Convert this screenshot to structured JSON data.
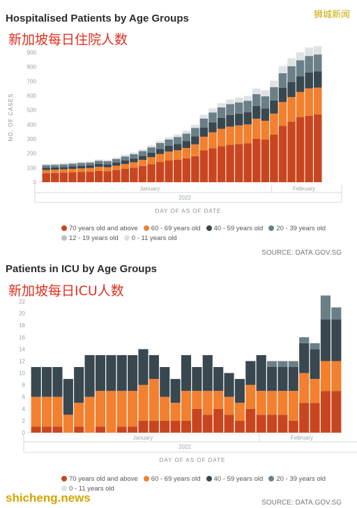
{
  "watermark": "狮城新闻",
  "site": "shicheng.news",
  "chart_data": [
    {
      "type": "bar",
      "stacked": true,
      "title": "Hospitalised Patients by Age Groups",
      "subtitle_cn": "新加坡每日住院人数",
      "ylabel": "NO. OF CASES",
      "xlabel": "DAY OF AS OF DATE",
      "month_labels": [
        "January",
        "February"
      ],
      "year_label": "2022",
      "ylim": [
        0,
        900
      ],
      "yticks": [
        0,
        100,
        200,
        300,
        400,
        500,
        600,
        700,
        800,
        900
      ],
      "source": "SOURCE: DATA.GOV.SG",
      "series": [
        {
          "name": "70 years old and above",
          "color": "#c8461f",
          "values": [
            62,
            64,
            66,
            68,
            70,
            72,
            78,
            76,
            84,
            92,
            100,
            112,
            125,
            140,
            150,
            155,
            165,
            180,
            220,
            235,
            250,
            260,
            265,
            270,
            300,
            295,
            330,
            390,
            420,
            450,
            460,
            470
          ]
        },
        {
          "name": "60 - 69 years old",
          "color": "#f2802f",
          "values": [
            22,
            22,
            23,
            24,
            25,
            26,
            28,
            27,
            30,
            34,
            38,
            42,
            48,
            55,
            62,
            66,
            72,
            82,
            95,
            110,
            120,
            125,
            128,
            130,
            140,
            130,
            145,
            165,
            170,
            175,
            190,
            185
          ]
        },
        {
          "name": "40 - 59 years old",
          "color": "#39474f",
          "values": [
            16,
            16,
            16,
            17,
            18,
            18,
            20,
            20,
            22,
            24,
            26,
            28,
            32,
            36,
            40,
            44,
            48,
            56,
            64,
            70,
            76,
            80,
            82,
            84,
            88,
            86,
            92,
            100,
            104,
            108,
            110,
            112
          ]
        },
        {
          "name": "20 - 39 years old",
          "color": "#6b7f87",
          "values": [
            18,
            18,
            18,
            19,
            20,
            20,
            22,
            22,
            25,
            28,
            30,
            33,
            36,
            40,
            44,
            48,
            52,
            58,
            62,
            68,
            72,
            76,
            78,
            80,
            82,
            84,
            92,
            100,
            110,
            112,
            115,
            118
          ]
        },
        {
          "name": "12 - 19 years old",
          "color": "#b9c0c3",
          "values": [
            0,
            0,
            0,
            0,
            0,
            0,
            0,
            0,
            0,
            0,
            0,
            0,
            0,
            0,
            0,
            0,
            0,
            0,
            0,
            0,
            0,
            0,
            0,
            0,
            0,
            0,
            0,
            0,
            0,
            0,
            0,
            0
          ]
        },
        {
          "name": "0 - 11 years old",
          "color": "#dfe2e4",
          "values": [
            8,
            8,
            8,
            8,
            8,
            8,
            10,
            10,
            10,
            12,
            12,
            12,
            14,
            15,
            16,
            18,
            20,
            22,
            26,
            28,
            30,
            32,
            33,
            34,
            40,
            42,
            45,
            50,
            55,
            55,
            58,
            58
          ]
        }
      ]
    },
    {
      "type": "bar",
      "stacked": true,
      "title": "Patients in ICU by Age Groups",
      "subtitle_cn": "新加坡每日ICU人数",
      "ylabel": "",
      "xlabel": "DAY OF AS OF DATE",
      "month_labels": [
        "January",
        "February"
      ],
      "year_label": "2022",
      "ylim": [
        0,
        22
      ],
      "yticks": [
        0,
        2,
        4,
        6,
        8,
        10,
        12,
        14,
        16,
        18,
        20,
        22
      ],
      "source": "SOURCE: DATA.GOV.SG",
      "series": [
        {
          "name": "70 years old and above",
          "color": "#c8461f",
          "values": [
            1,
            1,
            1,
            0,
            1,
            0,
            1,
            0,
            1,
            1,
            2,
            2,
            2,
            2,
            2,
            4,
            3,
            4,
            3,
            2,
            4,
            3,
            3,
            3,
            2,
            5,
            5,
            7,
            7
          ]
        },
        {
          "name": "60 - 69 years old",
          "color": "#f2802f",
          "values": [
            5,
            5,
            5,
            3,
            4,
            6,
            6,
            7,
            6,
            6,
            6,
            7,
            4,
            3,
            5,
            3,
            4,
            3,
            3,
            3,
            4,
            4,
            4,
            4,
            5,
            5,
            4,
            5,
            5
          ]
        },
        {
          "name": "40 - 59 years old",
          "color": "#39474f",
          "values": [
            5,
            5,
            5,
            6,
            6,
            7,
            6,
            6,
            6,
            6,
            6,
            4,
            5,
            4,
            6,
            4,
            6,
            4,
            4,
            4,
            4,
            6,
            4,
            4,
            4,
            5,
            5,
            7,
            7
          ]
        },
        {
          "name": "20 - 39 years old",
          "color": "#6b7f87",
          "values": [
            0,
            0,
            0,
            0,
            0,
            0,
            0,
            0,
            0,
            0,
            0,
            0,
            0,
            0,
            0,
            0,
            0,
            0,
            0,
            0,
            0,
            0,
            1,
            1,
            1,
            1,
            1,
            4,
            2
          ]
        },
        {
          "name": "0 - 11 years old",
          "color": "#dfe2e4",
          "values": [
            0,
            0,
            0,
            0,
            0,
            0,
            0,
            0,
            0,
            0,
            0,
            0,
            0,
            0,
            0,
            0,
            0,
            0,
            0,
            0,
            0,
            0,
            0,
            0,
            0,
            0,
            0,
            0,
            0
          ]
        }
      ]
    }
  ]
}
